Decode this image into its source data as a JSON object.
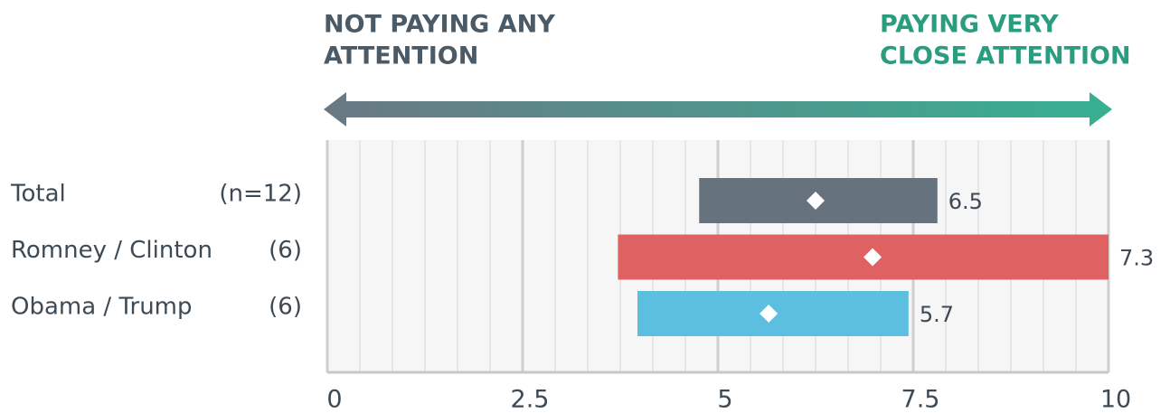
{
  "chart_data": {
    "type": "range-bar",
    "left_label": [
      "NOT PAYING ANY",
      "ATTENTION"
    ],
    "right_label": [
      "PAYING VERY",
      "CLOSE ATTENTION"
    ],
    "categories": [
      "Total",
      "Romney / Clinton",
      "Obama / Trump"
    ],
    "sample_sizes": [
      "(n=12)",
      "(6)",
      "(6)"
    ],
    "colors": [
      "#66737f",
      "#e06162",
      "#5dbfe0"
    ],
    "low": [
      4.76,
      3.72,
      3.97
    ],
    "high": [
      7.81,
      10,
      7.44
    ],
    "markers": [
      6.25,
      6.98,
      5.65
    ],
    "values": [
      6.5,
      7.3,
      5.7
    ],
    "xlim": [
      0,
      10
    ],
    "xticks": [
      0,
      2.5,
      5,
      7.5,
      10
    ],
    "grid": true
  }
}
